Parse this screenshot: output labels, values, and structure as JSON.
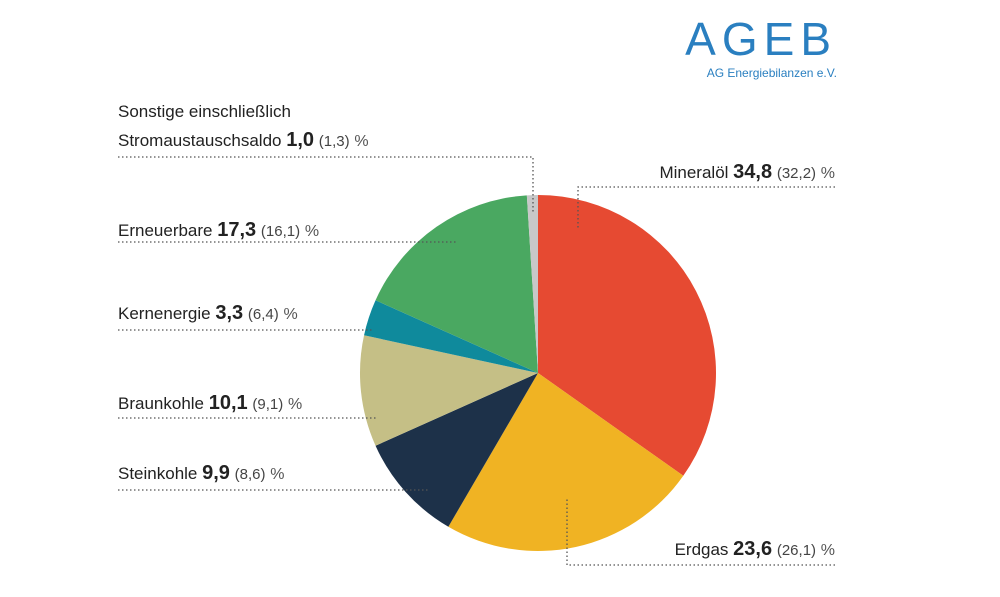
{
  "logo": {
    "title": "AGEB",
    "subtitle": "AG Energiebilanzen e.V."
  },
  "chart_data": {
    "type": "pie",
    "categories": [
      "Mineralöl",
      "Erdgas",
      "Steinkohle",
      "Braunkohle",
      "Kernenergie",
      "Erneuerbare",
      "Sonstige einschließlich\nStromaustauschsaldo"
    ],
    "values": [
      34.8,
      23.6,
      9.9,
      10.1,
      3.3,
      17.3,
      1.0
    ],
    "value_labels": [
      "34,8",
      "23,6",
      "9,9",
      "10,1",
      "3,3",
      "17,3",
      "1,0"
    ],
    "previous_labels": [
      "(32,2)",
      "(26,1)",
      "(8,6)",
      "(9,1)",
      "(6,4)",
      "(16,1)",
      "(1,3)"
    ],
    "unit": "%",
    "colors": [
      "#e64a32",
      "#f0b323",
      "#1d3149",
      "#c5bf86",
      "#0f8a9c",
      "#4aa861",
      "#c8c8c8"
    ]
  }
}
